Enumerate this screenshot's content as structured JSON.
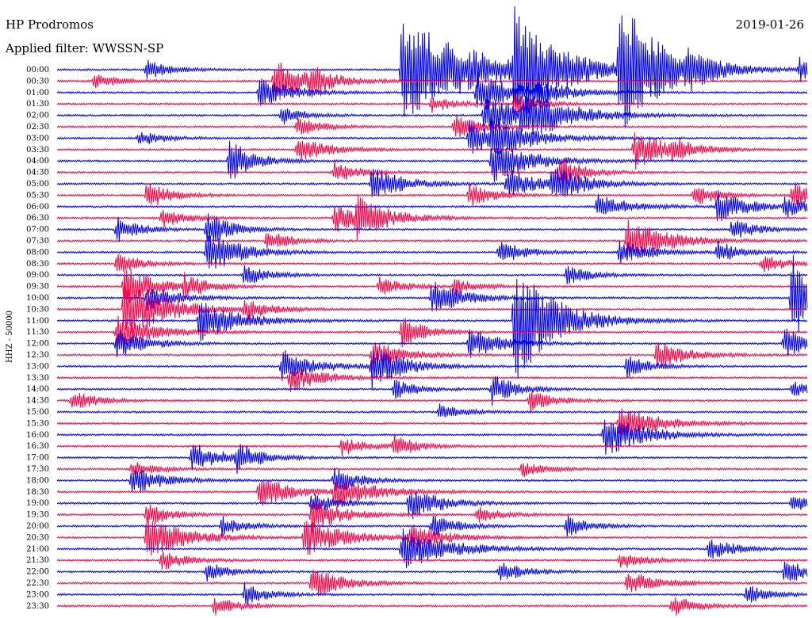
{
  "header": {
    "station": "HP Prodromos",
    "date": "2019-01-26",
    "filter_label": "Applied filter: WWSSN-SP"
  },
  "chart_data": {
    "type": "line",
    "title": "HP Prodromos",
    "subtitle": "Applied filter: WWSSN-SP",
    "ylabel": "HHZ - 50000",
    "grid": false,
    "trace_colors": [
      "#0000ee",
      "#ff0044"
    ],
    "rows": [
      "00:00",
      "00:30",
      "01:00",
      "01:30",
      "02:00",
      "02:30",
      "03:00",
      "03:30",
      "04:00",
      "04:30",
      "05:00",
      "05:30",
      "06:00",
      "06:30",
      "07:00",
      "07:30",
      "08:00",
      "08:30",
      "09:00",
      "09:30",
      "10:00",
      "10:30",
      "11:00",
      "11:30",
      "12:00",
      "12:30",
      "13:00",
      "13:30",
      "14:00",
      "14:30",
      "15:00",
      "15:30",
      "16:00",
      "16:30",
      "17:00",
      "17:30",
      "18:00",
      "18:30",
      "19:00",
      "19:30",
      "20:00",
      "20:30",
      "21:00",
      "21:30",
      "22:00",
      "22:30",
      "23:00",
      "23:30"
    ],
    "events": [
      {
        "row": 0,
        "t": 0.12,
        "a": 12,
        "d": 0.03
      },
      {
        "row": 0,
        "t": 0.46,
        "a": 70,
        "d": 0.09
      },
      {
        "row": 0,
        "t": 0.61,
        "a": 70,
        "d": 0.05
      },
      {
        "row": 0,
        "t": 0.75,
        "a": 90,
        "d": 0.05
      },
      {
        "row": 0,
        "t": 0.84,
        "a": 14,
        "d": 0.03
      },
      {
        "row": 0,
        "t": 0.99,
        "a": 16,
        "d": 0.03
      },
      {
        "row": 1,
        "t": 0.05,
        "a": 10,
        "d": 0.03
      },
      {
        "row": 1,
        "t": 0.29,
        "a": 28,
        "d": 0.04
      },
      {
        "row": 1,
        "t": 0.34,
        "a": 14,
        "d": 0.03
      },
      {
        "row": 2,
        "t": 0.27,
        "a": 20,
        "d": 0.04
      },
      {
        "row": 2,
        "t": 0.56,
        "a": 26,
        "d": 0.05
      },
      {
        "row": 2,
        "t": 0.64,
        "a": 12,
        "d": 0.04
      },
      {
        "row": 3,
        "t": 0.5,
        "a": 10,
        "d": 0.03
      },
      {
        "row": 3,
        "t": 0.61,
        "a": 14,
        "d": 0.03
      },
      {
        "row": 4,
        "t": 0.3,
        "a": 12,
        "d": 0.03
      },
      {
        "row": 4,
        "t": 0.57,
        "a": 26,
        "d": 0.05
      },
      {
        "row": 4,
        "t": 0.62,
        "a": 28,
        "d": 0.06
      },
      {
        "row": 5,
        "t": 0.32,
        "a": 12,
        "d": 0.03
      },
      {
        "row": 5,
        "t": 0.53,
        "a": 18,
        "d": 0.03
      },
      {
        "row": 6,
        "t": 0.11,
        "a": 10,
        "d": 0.03
      },
      {
        "row": 6,
        "t": 0.55,
        "a": 22,
        "d": 0.04
      },
      {
        "row": 6,
        "t": 0.58,
        "a": 20,
        "d": 0.05
      },
      {
        "row": 7,
        "t": 0.32,
        "a": 16,
        "d": 0.04
      },
      {
        "row": 7,
        "t": 0.77,
        "a": 26,
        "d": 0.04
      },
      {
        "row": 7,
        "t": 0.82,
        "a": 10,
        "d": 0.03
      },
      {
        "row": 8,
        "t": 0.23,
        "a": 28,
        "d": 0.03
      },
      {
        "row": 8,
        "t": 0.58,
        "a": 28,
        "d": 0.05
      },
      {
        "row": 9,
        "t": 0.37,
        "a": 14,
        "d": 0.03
      },
      {
        "row": 9,
        "t": 0.67,
        "a": 20,
        "d": 0.03
      },
      {
        "row": 10,
        "t": 0.42,
        "a": 22,
        "d": 0.04
      },
      {
        "row": 10,
        "t": 0.6,
        "a": 20,
        "d": 0.04
      },
      {
        "row": 10,
        "t": 0.66,
        "a": 22,
        "d": 0.04
      },
      {
        "row": 11,
        "t": 0.12,
        "a": 18,
        "d": 0.03
      },
      {
        "row": 11,
        "t": 0.55,
        "a": 16,
        "d": 0.03
      },
      {
        "row": 11,
        "t": 0.85,
        "a": 14,
        "d": 0.03
      },
      {
        "row": 11,
        "t": 0.98,
        "a": 18,
        "d": 0.03
      },
      {
        "row": 12,
        "t": 0.72,
        "a": 16,
        "d": 0.04
      },
      {
        "row": 12,
        "t": 0.88,
        "a": 20,
        "d": 0.04
      },
      {
        "row": 12,
        "t": 0.97,
        "a": 12,
        "d": 0.03
      },
      {
        "row": 13,
        "t": 0.14,
        "a": 12,
        "d": 0.03
      },
      {
        "row": 13,
        "t": 0.37,
        "a": 18,
        "d": 0.04
      },
      {
        "row": 13,
        "t": 0.4,
        "a": 22,
        "d": 0.04
      },
      {
        "row": 14,
        "t": 0.08,
        "a": 16,
        "d": 0.03
      },
      {
        "row": 14,
        "t": 0.2,
        "a": 24,
        "d": 0.03
      },
      {
        "row": 14,
        "t": 0.9,
        "a": 14,
        "d": 0.03
      },
      {
        "row": 15,
        "t": 0.28,
        "a": 14,
        "d": 0.03
      },
      {
        "row": 15,
        "t": 0.76,
        "a": 30,
        "d": 0.05
      },
      {
        "row": 16,
        "t": 0.2,
        "a": 30,
        "d": 0.04
      },
      {
        "row": 16,
        "t": 0.59,
        "a": 16,
        "d": 0.03
      },
      {
        "row": 16,
        "t": 0.75,
        "a": 16,
        "d": 0.04
      },
      {
        "row": 16,
        "t": 0.88,
        "a": 14,
        "d": 0.03
      },
      {
        "row": 17,
        "t": 0.08,
        "a": 14,
        "d": 0.03
      },
      {
        "row": 17,
        "t": 0.94,
        "a": 12,
        "d": 0.03
      },
      {
        "row": 18,
        "t": 0.25,
        "a": 14,
        "d": 0.03
      },
      {
        "row": 18,
        "t": 0.68,
        "a": 12,
        "d": 0.03
      },
      {
        "row": 19,
        "t": 0.09,
        "a": 26,
        "d": 0.04
      },
      {
        "row": 19,
        "t": 0.17,
        "a": 14,
        "d": 0.03
      },
      {
        "row": 19,
        "t": 0.43,
        "a": 12,
        "d": 0.03
      },
      {
        "row": 19,
        "t": 0.53,
        "a": 10,
        "d": 0.03
      },
      {
        "row": 20,
        "t": 0.12,
        "a": 16,
        "d": 0.04
      },
      {
        "row": 20,
        "t": 0.5,
        "a": 22,
        "d": 0.04
      },
      {
        "row": 20,
        "t": 0.98,
        "a": 60,
        "d": 0.03
      },
      {
        "row": 21,
        "t": 0.09,
        "a": 42,
        "d": 0.05
      },
      {
        "row": 21,
        "t": 0.25,
        "a": 14,
        "d": 0.03
      },
      {
        "row": 22,
        "t": 0.19,
        "a": 26,
        "d": 0.05
      },
      {
        "row": 22,
        "t": 0.61,
        "a": 80,
        "d": 0.05
      },
      {
        "row": 23,
        "t": 0.08,
        "a": 20,
        "d": 0.05
      },
      {
        "row": 23,
        "t": 0.46,
        "a": 20,
        "d": 0.03
      },
      {
        "row": 24,
        "t": 0.08,
        "a": 18,
        "d": 0.04
      },
      {
        "row": 24,
        "t": 0.55,
        "a": 20,
        "d": 0.04
      },
      {
        "row": 24,
        "t": 0.97,
        "a": 20,
        "d": 0.03
      },
      {
        "row": 25,
        "t": 0.8,
        "a": 18,
        "d": 0.04
      },
      {
        "row": 25,
        "t": 0.42,
        "a": 18,
        "d": 0.04
      },
      {
        "row": 26,
        "t": 0.3,
        "a": 22,
        "d": 0.04
      },
      {
        "row": 26,
        "t": 0.42,
        "a": 28,
        "d": 0.04
      },
      {
        "row": 26,
        "t": 0.76,
        "a": 14,
        "d": 0.03
      },
      {
        "row": 27,
        "t": 0.31,
        "a": 18,
        "d": 0.04
      },
      {
        "row": 28,
        "t": 0.45,
        "a": 12,
        "d": 0.03
      },
      {
        "row": 28,
        "t": 0.58,
        "a": 20,
        "d": 0.03
      },
      {
        "row": 28,
        "t": 0.98,
        "a": 10,
        "d": 0.03
      },
      {
        "row": 29,
        "t": 0.02,
        "a": 14,
        "d": 0.03
      },
      {
        "row": 29,
        "t": 0.63,
        "a": 14,
        "d": 0.03
      },
      {
        "row": 30,
        "t": 0.51,
        "a": 10,
        "d": 0.03
      },
      {
        "row": 31,
        "t": 0.75,
        "a": 22,
        "d": 0.05
      },
      {
        "row": 32,
        "t": 0.73,
        "a": 28,
        "d": 0.05
      },
      {
        "row": 33,
        "t": 0.38,
        "a": 12,
        "d": 0.03
      },
      {
        "row": 33,
        "t": 0.45,
        "a": 14,
        "d": 0.03
      },
      {
        "row": 34,
        "t": 0.18,
        "a": 20,
        "d": 0.04
      },
      {
        "row": 34,
        "t": 0.24,
        "a": 16,
        "d": 0.03
      },
      {
        "row": 35,
        "t": 0.1,
        "a": 10,
        "d": 0.03
      },
      {
        "row": 35,
        "t": 0.62,
        "a": 10,
        "d": 0.03
      },
      {
        "row": 36,
        "t": 0.1,
        "a": 18,
        "d": 0.04
      },
      {
        "row": 36,
        "t": 0.37,
        "a": 18,
        "d": 0.03
      },
      {
        "row": 37,
        "t": 0.27,
        "a": 22,
        "d": 0.04
      },
      {
        "row": 37,
        "t": 0.37,
        "a": 20,
        "d": 0.05
      },
      {
        "row": 38,
        "t": 0.34,
        "a": 14,
        "d": 0.03
      },
      {
        "row": 38,
        "t": 0.47,
        "a": 22,
        "d": 0.04
      },
      {
        "row": 38,
        "t": 0.98,
        "a": 12,
        "d": 0.03
      },
      {
        "row": 39,
        "t": 0.12,
        "a": 16,
        "d": 0.03
      },
      {
        "row": 39,
        "t": 0.34,
        "a": 22,
        "d": 0.04
      },
      {
        "row": 39,
        "t": 0.56,
        "a": 10,
        "d": 0.03
      },
      {
        "row": 40,
        "t": 0.22,
        "a": 12,
        "d": 0.03
      },
      {
        "row": 40,
        "t": 0.5,
        "a": 16,
        "d": 0.03
      },
      {
        "row": 40,
        "t": 0.68,
        "a": 14,
        "d": 0.03
      },
      {
        "row": 41,
        "t": 0.12,
        "a": 28,
        "d": 0.05
      },
      {
        "row": 41,
        "t": 0.33,
        "a": 24,
        "d": 0.05
      },
      {
        "row": 41,
        "t": 0.47,
        "a": 18,
        "d": 0.04
      },
      {
        "row": 42,
        "t": 0.46,
        "a": 26,
        "d": 0.06
      },
      {
        "row": 42,
        "t": 0.87,
        "a": 16,
        "d": 0.03
      },
      {
        "row": 43,
        "t": 0.14,
        "a": 14,
        "d": 0.03
      },
      {
        "row": 43,
        "t": 0.75,
        "a": 12,
        "d": 0.03
      },
      {
        "row": 44,
        "t": 0.2,
        "a": 12,
        "d": 0.03
      },
      {
        "row": 44,
        "t": 0.59,
        "a": 14,
        "d": 0.03
      },
      {
        "row": 44,
        "t": 0.97,
        "a": 18,
        "d": 0.03
      },
      {
        "row": 45,
        "t": 0.34,
        "a": 20,
        "d": 0.04
      },
      {
        "row": 45,
        "t": 0.76,
        "a": 16,
        "d": 0.04
      },
      {
        "row": 46,
        "t": 0.25,
        "a": 14,
        "d": 0.03
      },
      {
        "row": 46,
        "t": 0.92,
        "a": 12,
        "d": 0.03
      },
      {
        "row": 47,
        "t": 0.21,
        "a": 12,
        "d": 0.03
      },
      {
        "row": 47,
        "t": 0.82,
        "a": 14,
        "d": 0.03
      }
    ]
  }
}
